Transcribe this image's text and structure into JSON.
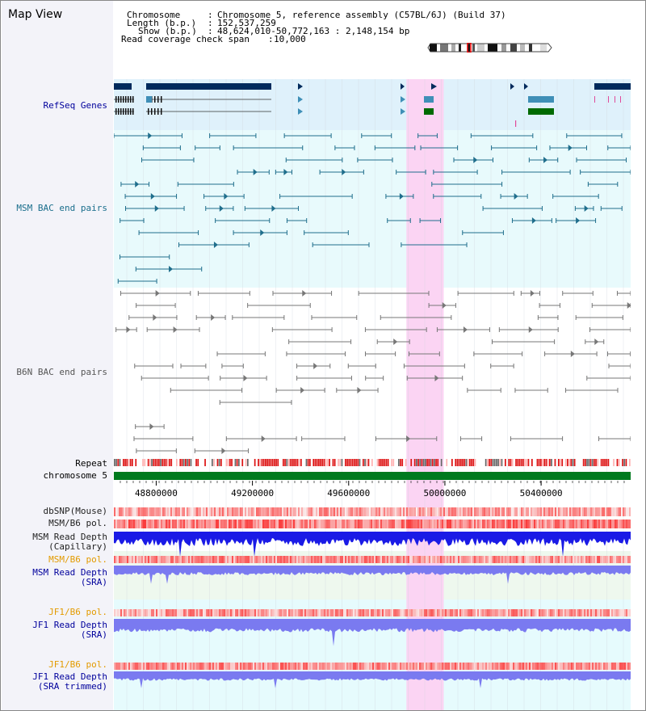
{
  "page": {
    "title": "Map View"
  },
  "info": {
    "chromosome_key": "Chromosome",
    "chromosome_value": "Chromosome 5, reference assembly (C57BL/6J) (Build 37)",
    "length_key": "Length (b.p.)",
    "length_value": "152,537,259",
    "show_key": "Show (b.p.)",
    "show_value": "48,624,010-50,772,163 : 2,148,154 bp",
    "span_key": "Read coverage check span",
    "span_value": "10,000"
  },
  "tracks": {
    "refseq": "RefSeq Genes",
    "msm_bac": "MSM BAC end pairs",
    "b6n_bac": "B6N BAC end pairs",
    "repeat": "Repeat",
    "chromosome": "chromosome 5",
    "dbsnp": "dbSNP(Mouse)",
    "msm_b6_pol_1": "MSM/B6 pol.",
    "msm_depth_cap": "MSM Read Depth\n(Capillary)",
    "msm_b6_pol_2": "MSM/B6 pol.",
    "msm_depth_sra": "MSM Read Depth\n(SRA)",
    "jf1_b6_pol_1": "JF1/B6 pol.",
    "jf1_depth_sra": "JF1 Read Depth\n(SRA)",
    "jf1_b6_pol_2": "JF1/B6 pol.",
    "jf1_depth_trim": "JF1 Read Depth\n(SRA trimmed)"
  },
  "axis": {
    "ticks": [
      "48800000",
      "49200000",
      "49600000",
      "50000000",
      "50400000"
    ],
    "tick_values": [
      48800000,
      49200000,
      49600000,
      50000000,
      50400000
    ],
    "range": [
      48624010,
      50772163
    ],
    "highlight": [
      49840000,
      49995000
    ]
  },
  "colors": {
    "refseq_bg": "#dff1fb",
    "msm_bg": "#e8fafc",
    "highlight": "#fbd4f3",
    "gene_dark": "#002a5c",
    "gene_mid": "#3f8fb7",
    "gene_green": "#006a00",
    "msm_pair": "#1f6e8c",
    "b6n_pair": "#777777",
    "chromosome": "#007a1e",
    "pol_red": "#ee1111",
    "depth_dark": "#1a1ae6",
    "depth_light": "#7a7af0",
    "label_blue": "#00009c",
    "label_teal": "#1a6e8c",
    "label_orange": "#e39b00",
    "label_gray": "#555555"
  }
}
